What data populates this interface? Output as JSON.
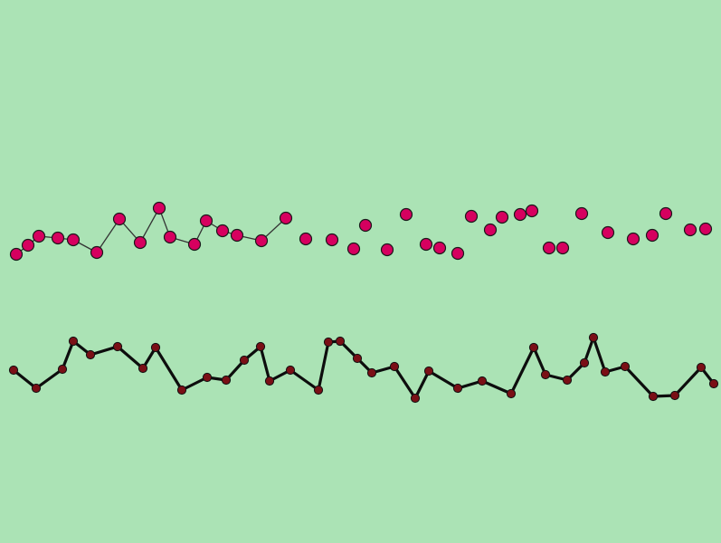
{
  "scene": {
    "background_color": "#abe3b5"
  },
  "upper_path": {
    "node_fill_color": "#d6005f",
    "node_stroke_color": "#1a1a1a",
    "connector_color": "#333333",
    "connected_node_count": 19,
    "loose_node_count": 30
  },
  "lower_path": {
    "node_fill_color": "#7a0f16",
    "line_color": "#0d0d0d",
    "node_count": 42
  }
}
